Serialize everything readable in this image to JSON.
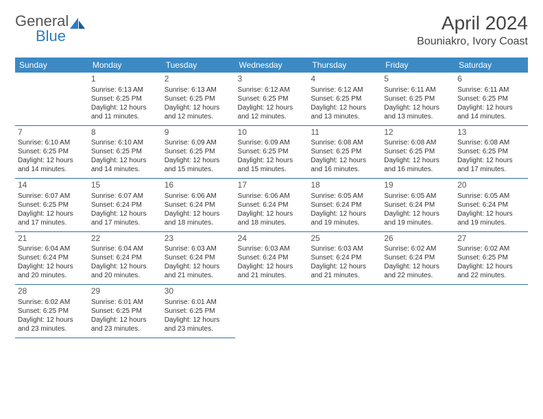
{
  "logo": {
    "word1": "General",
    "word2": "Blue"
  },
  "title": "April 2024",
  "location": "Bouniakro, Ivory Coast",
  "header_bg": "#3b8ac4",
  "header_fg": "#ffffff",
  "rule_color": "#2b6fa8",
  "text_color": "#333333",
  "font_size_body": 10,
  "font_size_daynum": 12,
  "font_size_header": 12,
  "font_size_title": 28,
  "font_size_location": 16,
  "days": [
    "Sunday",
    "Monday",
    "Tuesday",
    "Wednesday",
    "Thursday",
    "Friday",
    "Saturday"
  ],
  "cells": [
    {
      "n": "",
      "sr": "",
      "ss": "",
      "dl": ""
    },
    {
      "n": "1",
      "sr": "Sunrise: 6:13 AM",
      "ss": "Sunset: 6:25 PM",
      "dl": "Daylight: 12 hours and 11 minutes."
    },
    {
      "n": "2",
      "sr": "Sunrise: 6:13 AM",
      "ss": "Sunset: 6:25 PM",
      "dl": "Daylight: 12 hours and 12 minutes."
    },
    {
      "n": "3",
      "sr": "Sunrise: 6:12 AM",
      "ss": "Sunset: 6:25 PM",
      "dl": "Daylight: 12 hours and 12 minutes."
    },
    {
      "n": "4",
      "sr": "Sunrise: 6:12 AM",
      "ss": "Sunset: 6:25 PM",
      "dl": "Daylight: 12 hours and 13 minutes."
    },
    {
      "n": "5",
      "sr": "Sunrise: 6:11 AM",
      "ss": "Sunset: 6:25 PM",
      "dl": "Daylight: 12 hours and 13 minutes."
    },
    {
      "n": "6",
      "sr": "Sunrise: 6:11 AM",
      "ss": "Sunset: 6:25 PM",
      "dl": "Daylight: 12 hours and 14 minutes."
    },
    {
      "n": "7",
      "sr": "Sunrise: 6:10 AM",
      "ss": "Sunset: 6:25 PM",
      "dl": "Daylight: 12 hours and 14 minutes."
    },
    {
      "n": "8",
      "sr": "Sunrise: 6:10 AM",
      "ss": "Sunset: 6:25 PM",
      "dl": "Daylight: 12 hours and 14 minutes."
    },
    {
      "n": "9",
      "sr": "Sunrise: 6:09 AM",
      "ss": "Sunset: 6:25 PM",
      "dl": "Daylight: 12 hours and 15 minutes."
    },
    {
      "n": "10",
      "sr": "Sunrise: 6:09 AM",
      "ss": "Sunset: 6:25 PM",
      "dl": "Daylight: 12 hours and 15 minutes."
    },
    {
      "n": "11",
      "sr": "Sunrise: 6:08 AM",
      "ss": "Sunset: 6:25 PM",
      "dl": "Daylight: 12 hours and 16 minutes."
    },
    {
      "n": "12",
      "sr": "Sunrise: 6:08 AM",
      "ss": "Sunset: 6:25 PM",
      "dl": "Daylight: 12 hours and 16 minutes."
    },
    {
      "n": "13",
      "sr": "Sunrise: 6:08 AM",
      "ss": "Sunset: 6:25 PM",
      "dl": "Daylight: 12 hours and 17 minutes."
    },
    {
      "n": "14",
      "sr": "Sunrise: 6:07 AM",
      "ss": "Sunset: 6:25 PM",
      "dl": "Daylight: 12 hours and 17 minutes."
    },
    {
      "n": "15",
      "sr": "Sunrise: 6:07 AM",
      "ss": "Sunset: 6:24 PM",
      "dl": "Daylight: 12 hours and 17 minutes."
    },
    {
      "n": "16",
      "sr": "Sunrise: 6:06 AM",
      "ss": "Sunset: 6:24 PM",
      "dl": "Daylight: 12 hours and 18 minutes."
    },
    {
      "n": "17",
      "sr": "Sunrise: 6:06 AM",
      "ss": "Sunset: 6:24 PM",
      "dl": "Daylight: 12 hours and 18 minutes."
    },
    {
      "n": "18",
      "sr": "Sunrise: 6:05 AM",
      "ss": "Sunset: 6:24 PM",
      "dl": "Daylight: 12 hours and 19 minutes."
    },
    {
      "n": "19",
      "sr": "Sunrise: 6:05 AM",
      "ss": "Sunset: 6:24 PM",
      "dl": "Daylight: 12 hours and 19 minutes."
    },
    {
      "n": "20",
      "sr": "Sunrise: 6:05 AM",
      "ss": "Sunset: 6:24 PM",
      "dl": "Daylight: 12 hours and 19 minutes."
    },
    {
      "n": "21",
      "sr": "Sunrise: 6:04 AM",
      "ss": "Sunset: 6:24 PM",
      "dl": "Daylight: 12 hours and 20 minutes."
    },
    {
      "n": "22",
      "sr": "Sunrise: 6:04 AM",
      "ss": "Sunset: 6:24 PM",
      "dl": "Daylight: 12 hours and 20 minutes."
    },
    {
      "n": "23",
      "sr": "Sunrise: 6:03 AM",
      "ss": "Sunset: 6:24 PM",
      "dl": "Daylight: 12 hours and 21 minutes."
    },
    {
      "n": "24",
      "sr": "Sunrise: 6:03 AM",
      "ss": "Sunset: 6:24 PM",
      "dl": "Daylight: 12 hours and 21 minutes."
    },
    {
      "n": "25",
      "sr": "Sunrise: 6:03 AM",
      "ss": "Sunset: 6:24 PM",
      "dl": "Daylight: 12 hours and 21 minutes."
    },
    {
      "n": "26",
      "sr": "Sunrise: 6:02 AM",
      "ss": "Sunset: 6:24 PM",
      "dl": "Daylight: 12 hours and 22 minutes."
    },
    {
      "n": "27",
      "sr": "Sunrise: 6:02 AM",
      "ss": "Sunset: 6:25 PM",
      "dl": "Daylight: 12 hours and 22 minutes."
    },
    {
      "n": "28",
      "sr": "Sunrise: 6:02 AM",
      "ss": "Sunset: 6:25 PM",
      "dl": "Daylight: 12 hours and 23 minutes."
    },
    {
      "n": "29",
      "sr": "Sunrise: 6:01 AM",
      "ss": "Sunset: 6:25 PM",
      "dl": "Daylight: 12 hours and 23 minutes."
    },
    {
      "n": "30",
      "sr": "Sunrise: 6:01 AM",
      "ss": "Sunset: 6:25 PM",
      "dl": "Daylight: 12 hours and 23 minutes."
    },
    {
      "n": "",
      "sr": "",
      "ss": "",
      "dl": ""
    },
    {
      "n": "",
      "sr": "",
      "ss": "",
      "dl": ""
    },
    {
      "n": "",
      "sr": "",
      "ss": "",
      "dl": ""
    },
    {
      "n": "",
      "sr": "",
      "ss": "",
      "dl": ""
    }
  ]
}
